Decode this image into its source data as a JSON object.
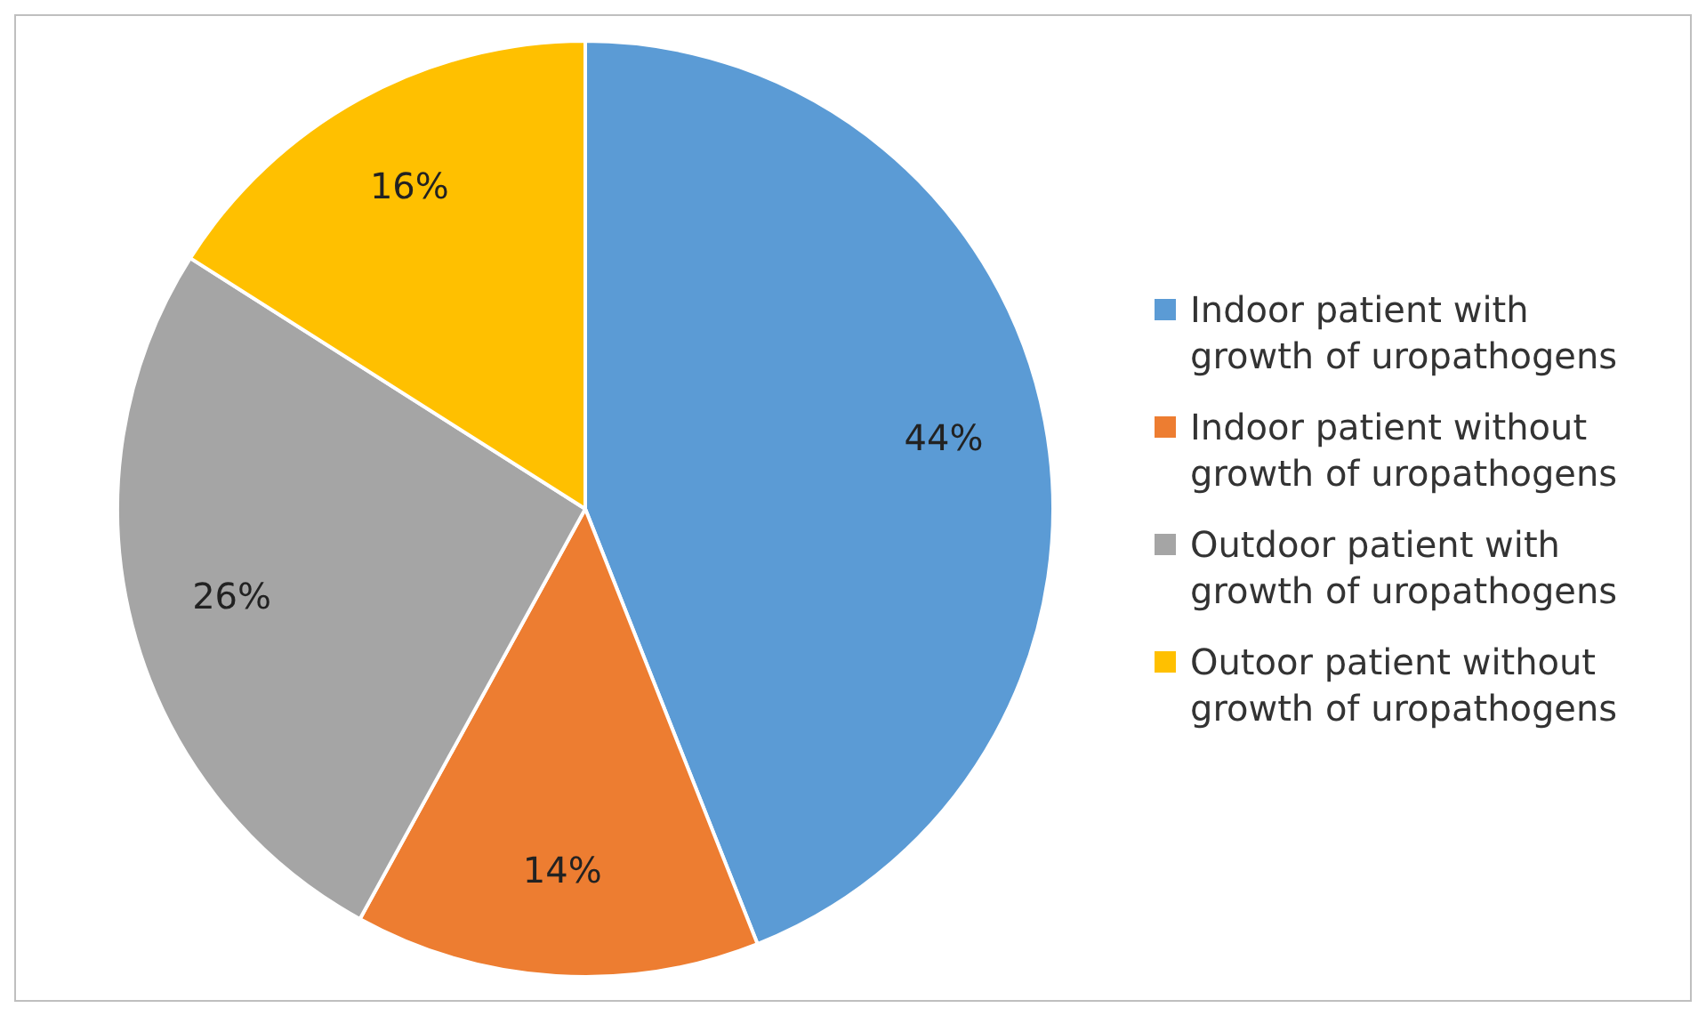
{
  "chart_data": {
    "type": "pie",
    "categories": [
      "Indoor patient with growth of uropathogens",
      "Indoor patient without growth of uropathogens",
      "Outdoor patient with growth of uropathogens",
      "Outoor patient without growth of uropathogens"
    ],
    "values": [
      44,
      14,
      26,
      16
    ],
    "colors": [
      "#5b9bd5",
      "#ed7d31",
      "#a5a5a5",
      "#ffc000"
    ],
    "value_labels": [
      "44%",
      "14%",
      "26%",
      "16%"
    ],
    "legend": "right"
  }
}
